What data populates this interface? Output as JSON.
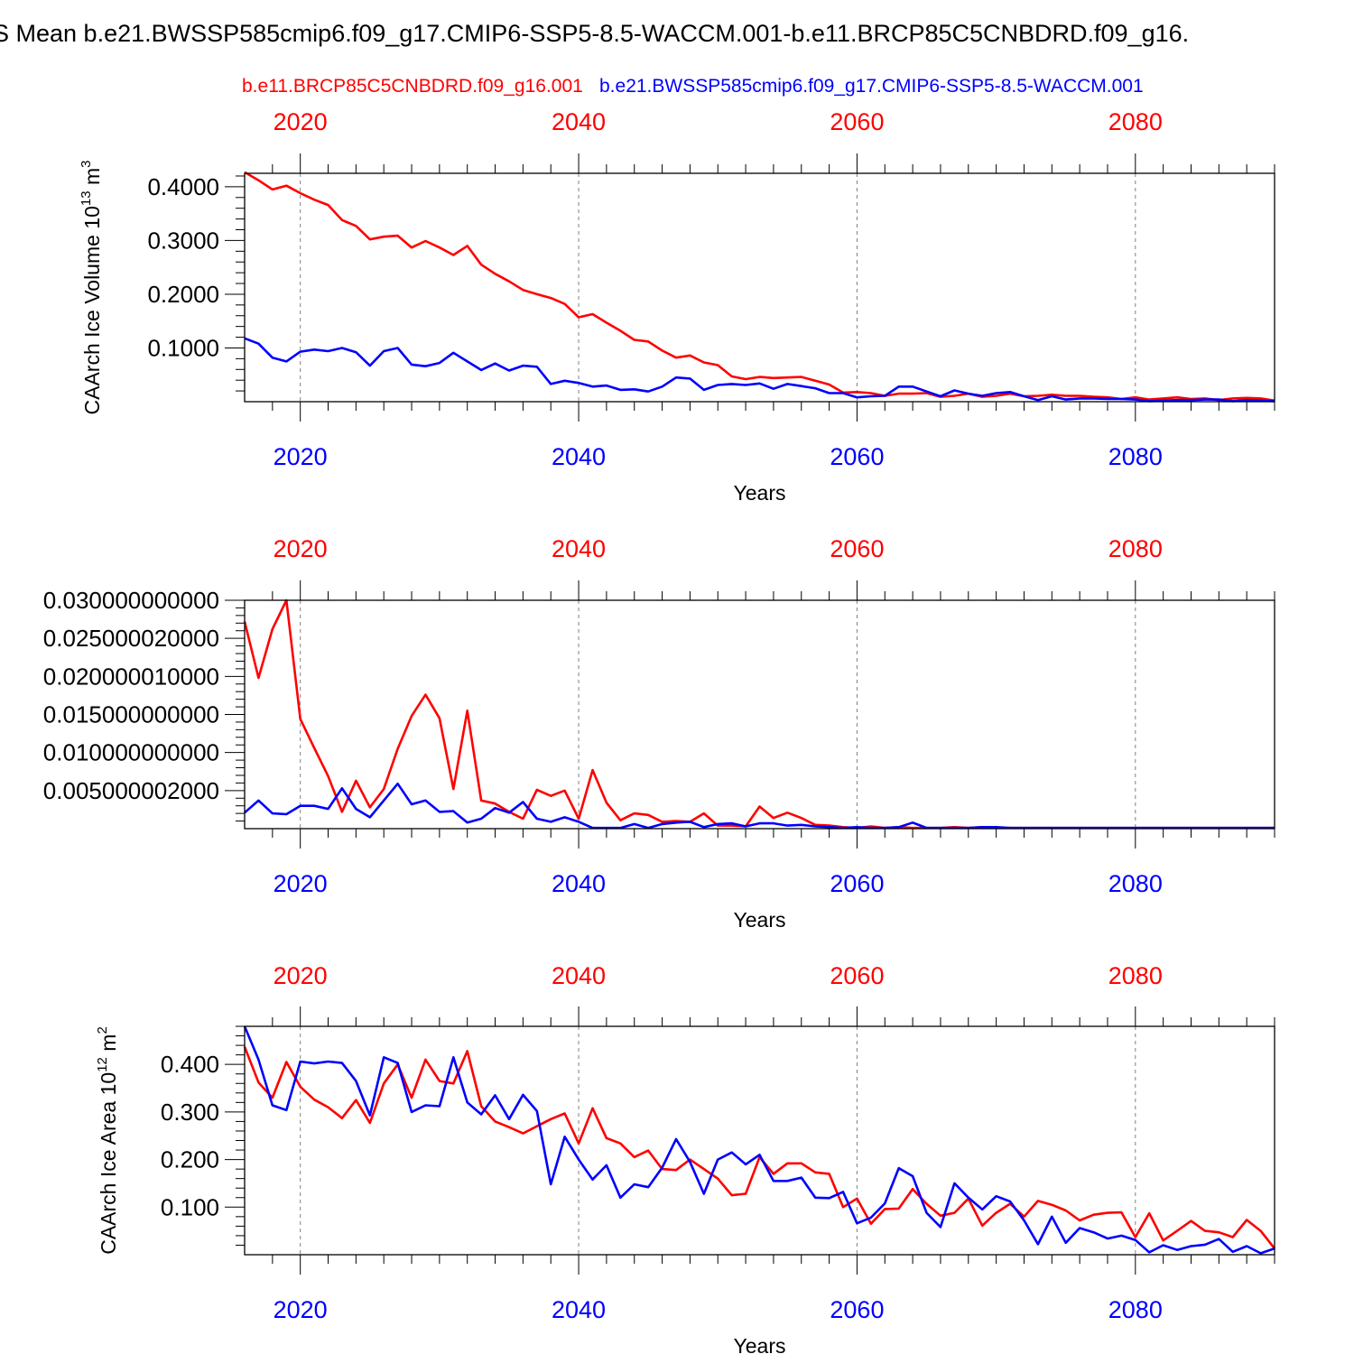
{
  "title": "S Mean b.e21.BWSSP585cmip6.f09_g17.CMIP6-SSP5-8.5-WACCM.001-b.e11.BRCP85C5CNBDRD.f09_g16.",
  "legend": {
    "red_case": "b.e11.BRCP85C5CNBDRD.f09_g16.001",
    "blue_case": "b.e21.BWSSP585cmip6.f09_g17.CMIP6-SSP5-8.5-WACCM.001"
  },
  "colors": {
    "red": "#ff0000",
    "blue": "#0000ff",
    "axis": "#000000",
    "grid": "#808080"
  },
  "chart_data": [
    {
      "type": "line",
      "title": "",
      "xlabel": "Years",
      "ylabel": "CAArch Ice Volume 10",
      "ylabel_exp": "13",
      "ylabel_unit": " m",
      "ylabel_unit_exp": "3",
      "xlim": [
        2016,
        2090
      ],
      "ylim": [
        0,
        0.425
      ],
      "x_ticks": [
        "2020",
        "2040",
        "2060",
        "2080"
      ],
      "y_ticks": [
        {
          "value": 0.1,
          "label": "0.1000"
        },
        {
          "value": 0.2,
          "label": "0.2000"
        },
        {
          "value": 0.3,
          "label": "0.3000"
        },
        {
          "value": 0.4,
          "label": "0.4000"
        }
      ],
      "series": [
        {
          "name": "b.e11.BRCP85C5CNBDRD.f09_g16.001",
          "color": "red",
          "values": [
            0.427,
            0.412,
            0.395,
            0.402,
            0.388,
            0.376,
            0.366,
            0.338,
            0.327,
            0.302,
            0.307,
            0.309,
            0.287,
            0.299,
            0.287,
            0.273,
            0.29,
            0.255,
            0.238,
            0.224,
            0.208,
            0.2,
            0.193,
            0.182,
            0.157,
            0.163,
            0.147,
            0.132,
            0.115,
            0.112,
            0.095,
            0.082,
            0.086,
            0.073,
            0.068,
            0.047,
            0.042,
            0.046,
            0.044,
            0.045,
            0.046,
            0.039,
            0.032,
            0.017,
            0.018,
            0.016,
            0.011,
            0.015,
            0.015,
            0.016,
            0.009,
            0.011,
            0.015,
            0.009,
            0.011,
            0.015,
            0.01,
            0.011,
            0.013,
            0.011,
            0.011,
            0.009,
            0.008,
            0.005,
            0.008,
            0.004,
            0.006,
            0.008,
            0.005,
            0.006,
            0.003,
            0.006,
            0.007,
            0.006,
            0.002
          ]
        },
        {
          "name": "b.e21.BWSSP585cmip6.f09_g17.CMIP6-SSP5-8.5-WACCM.001",
          "color": "blue",
          "values": [
            0.118,
            0.108,
            0.082,
            0.075,
            0.093,
            0.097,
            0.094,
            0.1,
            0.092,
            0.067,
            0.094,
            0.1,
            0.069,
            0.066,
            0.072,
            0.091,
            0.075,
            0.059,
            0.071,
            0.058,
            0.067,
            0.065,
            0.033,
            0.039,
            0.035,
            0.028,
            0.03,
            0.022,
            0.023,
            0.019,
            0.028,
            0.045,
            0.043,
            0.022,
            0.031,
            0.033,
            0.031,
            0.034,
            0.024,
            0.033,
            0.029,
            0.025,
            0.016,
            0.016,
            0.008,
            0.01,
            0.011,
            0.028,
            0.028,
            0.019,
            0.01,
            0.021,
            0.015,
            0.011,
            0.016,
            0.018,
            0.01,
            0.003,
            0.01,
            0.004,
            0.006,
            0.006,
            0.005,
            0.005,
            0.004,
            0.001,
            0.002,
            0.003,
            0.003,
            0.004,
            0.004,
            0.001,
            0.003,
            0.002,
            0.001
          ]
        }
      ]
    },
    {
      "type": "line",
      "title": "",
      "xlabel": "Years",
      "ylabel": "",
      "xlim": [
        2016,
        2090
      ],
      "ylim": [
        0,
        0.03
      ],
      "x_ticks": [
        "2020",
        "2040",
        "2060",
        "2080"
      ],
      "y_ticks": [
        {
          "value": 0.005,
          "label": "0.005000002000"
        },
        {
          "value": 0.01,
          "label": "0.010000000000"
        },
        {
          "value": 0.015,
          "label": "0.015000000000"
        },
        {
          "value": 0.02,
          "label": "0.020000010000"
        },
        {
          "value": 0.025,
          "label": "0.025000020000"
        },
        {
          "value": 0.03,
          "label": "0.030000000000"
        }
      ],
      "series": [
        {
          "name": "b.e11.BRCP85C5CNBDRD.f09_g16.001",
          "color": "red",
          "values": [
            0.0272,
            0.0198,
            0.0262,
            0.03,
            0.0144,
            0.0106,
            0.0069,
            0.0022,
            0.0063,
            0.0028,
            0.0052,
            0.0105,
            0.0148,
            0.0176,
            0.0145,
            0.0052,
            0.0155,
            0.0037,
            0.0033,
            0.0022,
            0.0013,
            0.0051,
            0.0043,
            0.005,
            0.0013,
            0.0077,
            0.0034,
            0.0011,
            0.002,
            0.0018,
            0.0009,
            0.001,
            0.0009,
            0.002,
            0.0004,
            0.0004,
            0.0003,
            0.0029,
            0.0014,
            0.0021,
            0.0014,
            0.0005,
            0.0004,
            0.0002,
            0.0001,
            0.0003,
            0.0001,
            0.0002,
            0.0001,
            0.0001,
            0.0001,
            0.0002,
            0.0001,
            0.0002,
            0.0001,
            0.0001,
            0.0001,
            0.0001,
            0.0001,
            0.0001,
            0.0001,
            0.0001,
            0.0001,
            0.0001,
            0.0001,
            0.0001,
            0.0001,
            0.0001,
            0.0001,
            0.0001,
            0.0001,
            0.0001,
            0.0001,
            0.0001,
            0.0001
          ]
        },
        {
          "name": "b.e21.BWSSP585cmip6.f09_g17.CMIP6-SSP5-8.5-WACCM.001",
          "color": "blue",
          "values": [
            0.0021,
            0.0037,
            0.002,
            0.0019,
            0.003,
            0.003,
            0.0026,
            0.0053,
            0.0026,
            0.0015,
            0.0037,
            0.0059,
            0.0032,
            0.0037,
            0.0022,
            0.0023,
            0.0008,
            0.0013,
            0.0027,
            0.0021,
            0.0035,
            0.0013,
            0.0009,
            0.0015,
            0.0009,
            0.0001,
            0.0001,
            0.0001,
            0.0006,
            0.0001,
            0.0006,
            0.0008,
            0.0009,
            0.0002,
            0.0006,
            0.0007,
            0.0003,
            0.0007,
            0.0007,
            0.0004,
            0.0005,
            0.0003,
            0.0002,
            0.0001,
            0.0002,
            0.0001,
            0.0001,
            0.0002,
            0.0008,
            0.0001,
            0.0001,
            0.0001,
            0.0001,
            0.0002,
            0.0002,
            0.0001,
            0.0001,
            0.0001,
            0.0001,
            0.0001,
            0.0001,
            0.0001,
            0.0001,
            0.0001,
            0.0001,
            0.0001,
            0.0001,
            0.0001,
            0.0001,
            0.0001,
            0.0001,
            0.0001,
            0.0001,
            0.0001,
            0.0001
          ]
        }
      ]
    },
    {
      "type": "line",
      "title": "",
      "xlabel": "Years",
      "ylabel": "CAArch Ice Area 10",
      "ylabel_exp": "12",
      "ylabel_unit": " m",
      "ylabel_unit_exp": "2",
      "xlim": [
        2016,
        2090
      ],
      "ylim": [
        0,
        0.48
      ],
      "x_ticks": [
        "2020",
        "2040",
        "2060",
        "2080"
      ],
      "y_ticks": [
        {
          "value": 0.1,
          "label": "0.100"
        },
        {
          "value": 0.2,
          "label": "0.200"
        },
        {
          "value": 0.3,
          "label": "0.300"
        },
        {
          "value": 0.4,
          "label": "0.400"
        }
      ],
      "series": [
        {
          "name": "b.e11.BRCP85C5CNBDRD.f09_g16.001",
          "color": "red",
          "values": [
            0.437,
            0.362,
            0.33,
            0.405,
            0.353,
            0.326,
            0.31,
            0.287,
            0.325,
            0.277,
            0.36,
            0.4,
            0.33,
            0.41,
            0.365,
            0.36,
            0.428,
            0.312,
            0.28,
            0.268,
            0.255,
            0.27,
            0.285,
            0.297,
            0.234,
            0.308,
            0.245,
            0.234,
            0.205,
            0.219,
            0.18,
            0.178,
            0.2,
            0.18,
            0.16,
            0.125,
            0.128,
            0.205,
            0.17,
            0.192,
            0.192,
            0.173,
            0.17,
            0.1,
            0.118,
            0.065,
            0.096,
            0.097,
            0.138,
            0.107,
            0.082,
            0.088,
            0.118,
            0.061,
            0.088,
            0.107,
            0.08,
            0.113,
            0.105,
            0.093,
            0.072,
            0.084,
            0.088,
            0.089,
            0.037,
            0.087,
            0.03,
            0.05,
            0.071,
            0.05,
            0.047,
            0.037,
            0.073,
            0.05,
            0.013
          ]
        },
        {
          "name": "b.e21.BWSSP585cmip6.f09_g17.CMIP6-SSP5-8.5-WACCM.001",
          "color": "blue",
          "values": [
            0.48,
            0.41,
            0.314,
            0.304,
            0.406,
            0.402,
            0.406,
            0.403,
            0.365,
            0.293,
            0.415,
            0.403,
            0.3,
            0.314,
            0.312,
            0.415,
            0.32,
            0.295,
            0.335,
            0.285,
            0.336,
            0.302,
            0.148,
            0.248,
            0.2,
            0.158,
            0.188,
            0.12,
            0.148,
            0.142,
            0.183,
            0.243,
            0.195,
            0.128,
            0.2,
            0.215,
            0.19,
            0.21,
            0.155,
            0.155,
            0.162,
            0.12,
            0.119,
            0.132,
            0.066,
            0.078,
            0.108,
            0.182,
            0.165,
            0.088,
            0.058,
            0.15,
            0.12,
            0.095,
            0.123,
            0.112,
            0.072,
            0.022,
            0.08,
            0.025,
            0.056,
            0.047,
            0.034,
            0.04,
            0.031,
            0.005,
            0.02,
            0.01,
            0.018,
            0.021,
            0.033,
            0.006,
            0.018,
            0.003,
            0.013
          ]
        }
      ]
    }
  ]
}
